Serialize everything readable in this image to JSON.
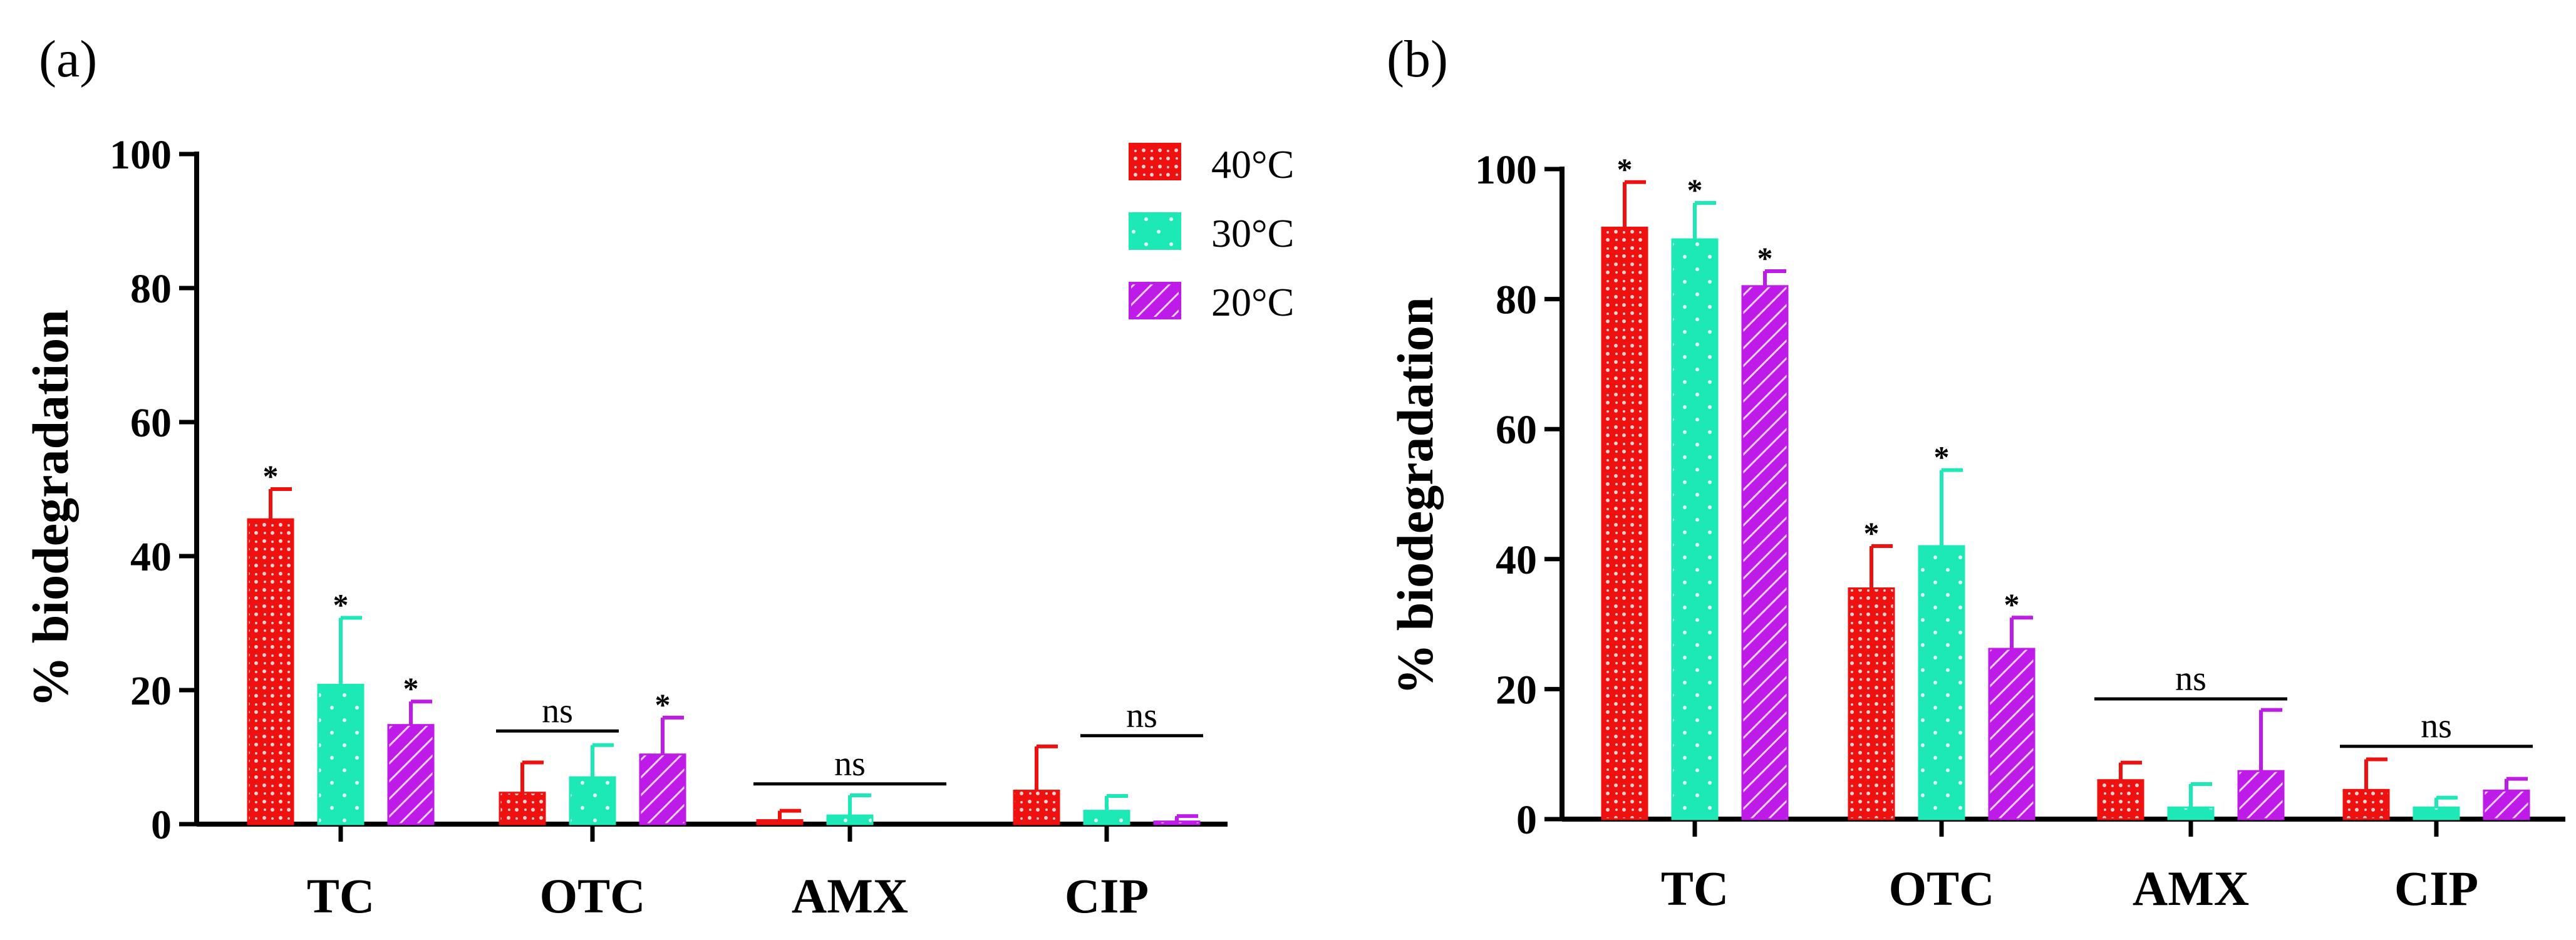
{
  "panel_labels": [
    "(a)",
    "(b)"
  ],
  "legend": {
    "entries": [
      {
        "label": "40°C",
        "color": "#ef1010",
        "pattern": "dots"
      },
      {
        "label": "30°C",
        "color": "#1de9b6",
        "pattern": "sparse-dots"
      },
      {
        "label": "20°C",
        "color": "#bf1be8",
        "pattern": "diagonal-hatch"
      }
    ],
    "placement": "top-right of panel (a)"
  },
  "chart_data": [
    {
      "type": "bar",
      "panel": "(a)",
      "title": "",
      "xlabel": "",
      "ylabel": "% biodegradation",
      "ylim": [
        0,
        100
      ],
      "yticks": [
        0,
        20,
        40,
        60,
        80,
        100
      ],
      "categories": [
        "TC",
        "OTC",
        "AMX",
        "CIP"
      ],
      "series": [
        {
          "name": "40°C",
          "values": [
            45.5,
            4.7,
            0.6,
            5.0
          ],
          "errors": [
            4.5,
            4.5,
            1.4,
            6.6
          ]
        },
        {
          "name": "30°C",
          "values": [
            20.8,
            7.0,
            1.3,
            2.0
          ],
          "errors": [
            10.0,
            4.8,
            3.0,
            2.2
          ]
        },
        {
          "name": "20°C",
          "values": [
            14.8,
            10.4,
            0.0,
            0.4
          ],
          "errors": [
            3.5,
            5.5,
            0.0,
            0.8
          ]
        }
      ],
      "annotations": [
        {
          "text": "*",
          "category": "TC",
          "series": "40°C"
        },
        {
          "text": "*",
          "category": "TC",
          "series": "30°C"
        },
        {
          "text": "*",
          "category": "TC",
          "series": "20°C"
        },
        {
          "text": "ns",
          "category": "OTC",
          "span": [
            "40°C",
            "30°C"
          ],
          "y": 13.9
        },
        {
          "text": "*",
          "category": "OTC",
          "series": "20°C"
        },
        {
          "text": "ns",
          "category": "AMX",
          "span": [
            "40°C",
            "20°C"
          ],
          "y": 6.0
        },
        {
          "text": "ns",
          "category": "CIP",
          "span": [
            "30°C",
            "20°C"
          ],
          "y": 13.2
        }
      ]
    },
    {
      "type": "bar",
      "panel": "(b)",
      "title": "",
      "xlabel": "",
      "ylabel": "% biodegradation",
      "ylim": [
        0,
        100
      ],
      "yticks": [
        0,
        20,
        40,
        60,
        80,
        100
      ],
      "categories": [
        "TC",
        "OTC",
        "AMX",
        "CIP"
      ],
      "series": [
        {
          "name": "40°C",
          "values": [
            91.0,
            35.5,
            6.0,
            4.5
          ],
          "errors": [
            7.0,
            6.5,
            2.7,
            4.7
          ]
        },
        {
          "name": "30°C",
          "values": [
            89.2,
            42.0,
            1.8,
            1.8
          ],
          "errors": [
            5.6,
            11.7,
            3.6,
            1.5
          ]
        },
        {
          "name": "20°C",
          "values": [
            82.0,
            26.2,
            7.4,
            4.4
          ],
          "errors": [
            2.3,
            4.8,
            9.4,
            1.8
          ]
        }
      ],
      "annotations": [
        {
          "text": "*",
          "category": "TC",
          "series": "40°C"
        },
        {
          "text": "*",
          "category": "TC",
          "series": "30°C"
        },
        {
          "text": "*",
          "category": "TC",
          "series": "20°C"
        },
        {
          "text": "*",
          "category": "OTC",
          "series": "40°C"
        },
        {
          "text": "*",
          "category": "OTC",
          "series": "30°C"
        },
        {
          "text": "*",
          "category": "OTC",
          "series": "20°C"
        },
        {
          "text": "ns",
          "category": "AMX",
          "span": [
            "40°C",
            "20°C"
          ],
          "y": 18.5
        },
        {
          "text": "ns",
          "category": "CIP",
          "span": [
            "40°C",
            "20°C"
          ],
          "y": 11.2
        }
      ]
    }
  ]
}
